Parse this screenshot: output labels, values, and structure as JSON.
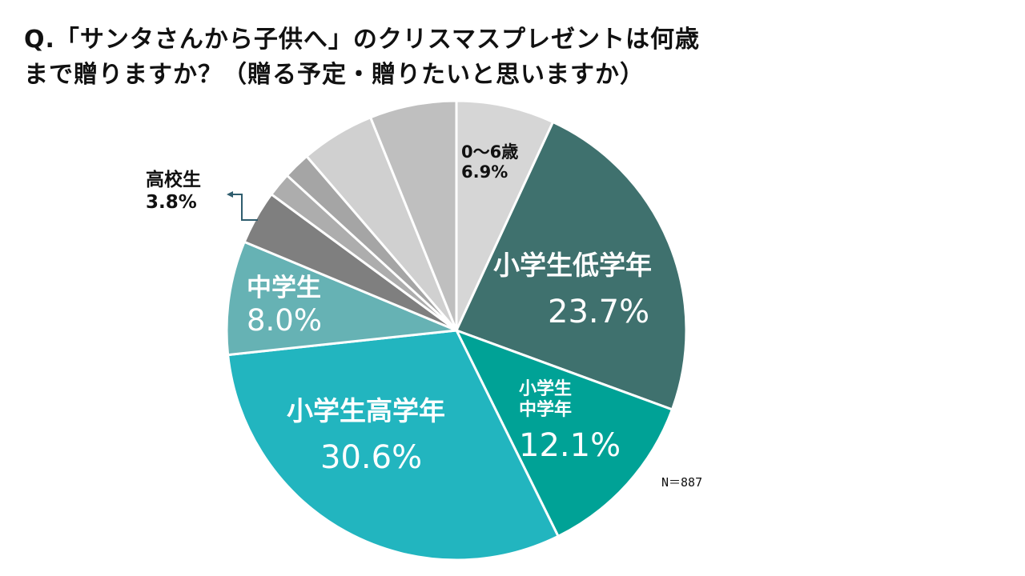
{
  "chart_data": {
    "type": "pie",
    "title_line1": "Q.「サンタさんから子供へ」のクリスマスプレゼントは何歳",
    "title_line2": "まで贈りますか？（贈る予定・贈りたいと思いますか）",
    "note": "N＝887",
    "start": "top, clockwise",
    "slices": [
      {
        "label": "0〜6歳",
        "value": 6.9,
        "value_text": "6.9%",
        "color": "#d6d6d6"
      },
      {
        "label": "小学生低学年",
        "value": 23.7,
        "value_text": "23.7%",
        "color": "#3f716e"
      },
      {
        "label_line1": "小学生",
        "label_line2": "中学年",
        "value": 12.1,
        "value_text": "12.1%",
        "color": "#00a296"
      },
      {
        "label": "小学生高学年",
        "value": 30.6,
        "value_text": "30.6%",
        "color": "#22b5bf"
      },
      {
        "label": "中学生",
        "value": 8.0,
        "value_text": "8.0%",
        "color": "#66b2b4"
      },
      {
        "label": "高校生",
        "value": 3.8,
        "value_text": "3.8%",
        "color": "#7f7f7f"
      },
      {
        "value": 1.7,
        "color": "#adadad"
      },
      {
        "value": 1.9,
        "color": "#a5a5a5"
      },
      {
        "value": 5.2,
        "color": "#d0d0d0"
      },
      {
        "value": 6.1,
        "color": "#bfbfbf"
      }
    ]
  }
}
